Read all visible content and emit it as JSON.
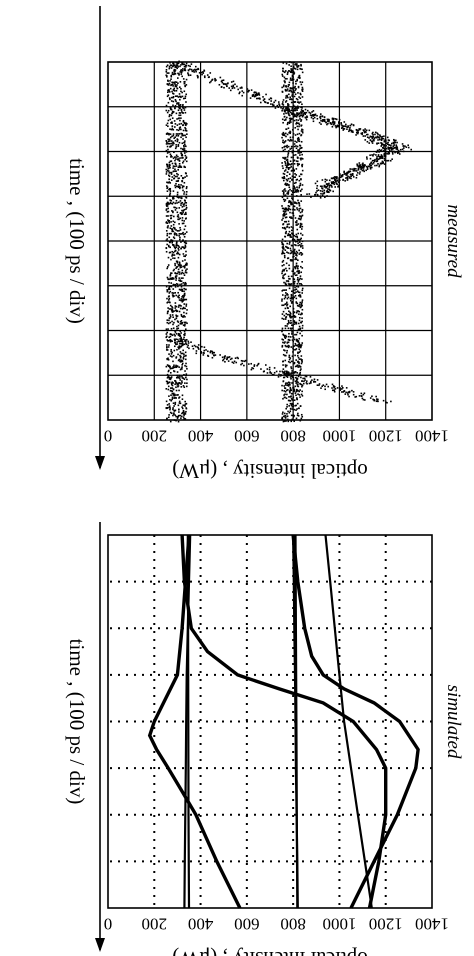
{
  "chart_data": [
    {
      "panel_label": "measured",
      "type": "scatter",
      "xlabel": "time , (100 ps / div)",
      "ylabel": "optical intensity , (μW)",
      "ylim": [
        0,
        1400
      ],
      "yticks": [
        "0",
        "200",
        "400",
        "600",
        "800",
        "1000",
        "1200",
        "1400"
      ],
      "grid": true,
      "x_divisions": 8,
      "series": [
        {
          "x": [
            0.0,
            1.0,
            1.8,
            2.2,
            3.0,
            4.0,
            5.0,
            6.0,
            7.0,
            7.8,
            8.0
          ],
          "values": [
            300,
            300,
            300,
            300,
            300,
            300,
            300,
            300,
            300,
            300,
            300
          ]
        },
        {
          "x": [
            0.0,
            1.0,
            2.0,
            3.0,
            4.0,
            5.0,
            6.0,
            7.0,
            8.0
          ],
          "values": [
            800,
            800,
            800,
            800,
            800,
            800,
            800,
            800,
            800
          ]
        },
        {
          "x": [
            0.0,
            0.3,
            0.6,
            1.0,
            1.3,
            1.6,
            1.9,
            2.2,
            2.6,
            3.0
          ],
          "values": [
            300,
            420,
            580,
            760,
            960,
            1150,
            1270,
            1180,
            1000,
            900
          ]
        },
        {
          "x": [
            1.0,
            1.3,
            1.6,
            1.9,
            2.2,
            2.5,
            2.8
          ],
          "values": [
            800,
            940,
            1120,
            1220,
            1150,
            1040,
            900
          ]
        },
        {
          "x": [
            6.2,
            6.5,
            6.8,
            7.0,
            7.3,
            7.6
          ],
          "values": [
            300,
            450,
            650,
            800,
            1000,
            1200
          ]
        }
      ]
    },
    {
      "panel_label": "simulated",
      "type": "line",
      "xlabel": "time , (100 ps / div)",
      "ylabel": "optical intensity , (μW)",
      "ylim": [
        0,
        1400
      ],
      "yticks": [
        "0",
        "200",
        "400",
        "600",
        "800",
        "1000",
        "1200",
        "1400"
      ],
      "grid": true,
      "x_divisions": 8,
      "series": [
        {
          "x": [
            0.0,
            1.0,
            2.0,
            3.0,
            4.0,
            5.0,
            6.0,
            7.0,
            8.0
          ],
          "values": [
            355,
            350,
            345,
            340,
            338,
            336,
            334,
            332,
            330
          ]
        },
        {
          "x": [
            0.0,
            2.0,
            4.0,
            6.0,
            8.0
          ],
          "values": [
            345,
            346,
            347,
            348,
            350
          ]
        },
        {
          "x": [
            0.0,
            1.0,
            2.0,
            3.0,
            4.0,
            5.0,
            6.0,
            7.0,
            8.0
          ],
          "values": [
            800,
            803,
            805,
            808,
            810,
            812,
            815,
            818,
            820
          ]
        },
        {
          "x": [
            0.0,
            2.0,
            4.0,
            6.0,
            8.0
          ],
          "values": [
            810,
            812,
            814,
            816,
            818
          ]
        },
        {
          "x": [
            0.0,
            1.0,
            2.0,
            3.0,
            3.6,
            4.0,
            4.3,
            4.6,
            5.0,
            5.5,
            6.0,
            7.0,
            8.0
          ],
          "values": [
            350,
            335,
            320,
            300,
            240,
            200,
            180,
            210,
            260,
            320,
            380,
            470,
            570
          ]
        },
        {
          "x": [
            0.0,
            1.0,
            2.0,
            2.5,
            3.0,
            3.3,
            3.6,
            4.0,
            4.6,
            5.0,
            6.0,
            7.0,
            8.0
          ],
          "values": [
            320,
            330,
            360,
            430,
            560,
            740,
            930,
            1060,
            1160,
            1200,
            1200,
            1170,
            1130
          ]
        },
        {
          "x": [
            0.0,
            1.0,
            2.0,
            2.6,
            3.0,
            3.3,
            3.6,
            4.0,
            4.6,
            5.0,
            6.0,
            7.0,
            8.0
          ],
          "values": [
            800,
            820,
            850,
            880,
            930,
            1020,
            1150,
            1260,
            1340,
            1330,
            1250,
            1150,
            1050
          ]
        },
        {
          "x": [
            0.0,
            1.0,
            2.0,
            3.0,
            4.0,
            5.0,
            6.0,
            7.0,
            8.0
          ],
          "values": [
            940,
            960,
            980,
            1000,
            1020,
            1050,
            1080,
            1110,
            1140
          ]
        }
      ]
    }
  ]
}
